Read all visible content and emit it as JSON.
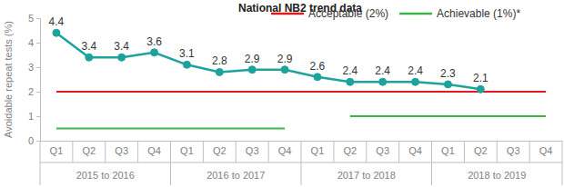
{
  "chart_data": {
    "type": "line",
    "title": "National NB2 trend data",
    "y_label": "Avoidable repeat tests (%)",
    "categories": [
      "Q1",
      "Q2",
      "Q3",
      "Q4",
      "Q1",
      "Q2",
      "Q3",
      "Q4",
      "Q1",
      "Q2",
      "Q3",
      "Q4",
      "Q1",
      "Q2",
      "Q3",
      "Q4"
    ],
    "group_labels": [
      "2015 to 2016",
      "2016 to 2017",
      "2017 to 2018",
      "2018 to 2019"
    ],
    "series": [
      {
        "color": "#1ba39c",
        "marker": "circle",
        "data_labels": true,
        "values": [
          4.4,
          3.4,
          3.4,
          3.6,
          3.1,
          2.8,
          2.9,
          2.9,
          2.6,
          2.4,
          2.4,
          2.4,
          2.3,
          2.1,
          null,
          null
        ]
      },
      {
        "name": "Acceptable (2%)",
        "color": "#e31a1c",
        "marker": "none",
        "values": [
          2,
          2,
          2,
          2,
          2,
          2,
          2,
          2,
          2,
          2,
          2,
          2,
          2,
          2,
          2,
          2
        ]
      },
      {
        "name": "Achievable (1%)*",
        "color": "#3cb54a",
        "marker": "none",
        "values": [
          0.5,
          0.5,
          0.5,
          0.5,
          0.5,
          0.5,
          0.5,
          0.5,
          null,
          1,
          1,
          1,
          1,
          1,
          1,
          1
        ]
      }
    ],
    "ylim": [
      0,
      5
    ],
    "yticks": [
      0,
      1,
      2,
      3,
      4,
      5
    ],
    "grid": false,
    "legend": "top"
  }
}
